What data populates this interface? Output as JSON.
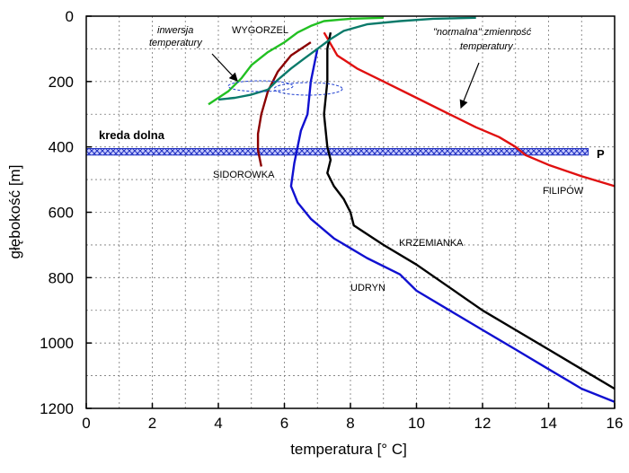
{
  "chart_data": {
    "type": "line",
    "xlabel": "temperatura [° C]",
    "ylabel": "głębokość [m]",
    "xlim": [
      0,
      16
    ],
    "ylim": [
      0,
      1200
    ],
    "y_inverted": true,
    "x_ticks": [
      "0",
      "2",
      "4",
      "6",
      "8",
      "10",
      "12",
      "14",
      "16"
    ],
    "y_ticks": [
      "0",
      "200",
      "400",
      "600",
      "800",
      "1000",
      "1200"
    ],
    "grid": true,
    "series": [
      {
        "name": "FILIPÓW",
        "color": "#e01010",
        "x": [
          7.2,
          7.6,
          8.2,
          9.0,
          10.0,
          11.0,
          11.8,
          12.5,
          13.0,
          13.3,
          14.0,
          15.0,
          16.0
        ],
        "y": [
          50,
          120,
          160,
          200,
          250,
          300,
          340,
          370,
          400,
          425,
          455,
          490,
          520
        ]
      },
      {
        "name": "KRZEMIANKA",
        "color": "#000000",
        "x": [
          7.4,
          7.3,
          7.3,
          7.2,
          7.3,
          7.4,
          7.3,
          7.5,
          7.8,
          8.0,
          8.1,
          8.4,
          9.0,
          10.0,
          11.0,
          12.0,
          13.0,
          14.0,
          15.0,
          16.0
        ],
        "y": [
          50,
          100,
          200,
          300,
          400,
          440,
          480,
          520,
          560,
          600,
          640,
          660,
          700,
          760,
          830,
          900,
          960,
          1020,
          1080,
          1140
        ]
      },
      {
        "name": "UDRYN",
        "color": "#1010d0",
        "x": [
          7.0,
          6.8,
          6.7,
          6.5,
          6.4,
          6.3,
          6.2,
          6.4,
          6.8,
          7.5,
          8.5,
          9.5,
          10.0,
          11.0,
          12.0,
          13.0,
          14.0,
          15.0,
          16.0
        ],
        "y": [
          100,
          200,
          300,
          350,
          400,
          450,
          520,
          570,
          620,
          680,
          740,
          790,
          840,
          900,
          960,
          1020,
          1080,
          1140,
          1180
        ]
      },
      {
        "name": "SIDOROWKA",
        "color": "#8b0000",
        "x": [
          6.8,
          6.2,
          5.8,
          5.5,
          5.3,
          5.2,
          5.2,
          5.3
        ],
        "y": [
          80,
          120,
          170,
          230,
          300,
          360,
          410,
          460
        ]
      },
      {
        "name": "WYGORZEL",
        "color": "#22c022",
        "x": [
          9.0,
          8.0,
          7.2,
          6.8,
          6.4,
          6.0,
          5.5,
          5.0,
          4.7,
          4.3,
          3.7
        ],
        "y": [
          5,
          8,
          15,
          30,
          50,
          80,
          110,
          150,
          190,
          230,
          270
        ]
      },
      {
        "color": "#0a7a6a",
        "x": [
          11.8,
          10.5,
          9.5,
          8.5,
          7.8,
          7.4,
          7.0,
          6.6,
          6.2,
          5.8,
          5.5,
          5.0,
          4.5,
          4.0
        ],
        "y": [
          5,
          8,
          15,
          25,
          45,
          70,
          100,
          130,
          160,
          195,
          225,
          240,
          250,
          255
        ]
      }
    ],
    "annotations": [
      {
        "text": "inwersja",
        "style": "italic"
      },
      {
        "text": "temperatury",
        "style": "italic"
      },
      {
        "text": "WYGORZEL",
        "style": "normal"
      },
      {
        "text": "\"normalna\" zmienność",
        "style": "italic"
      },
      {
        "text": "temperatury",
        "style": "italic"
      },
      {
        "text": "kreda dolna",
        "style": "bold"
      },
      {
        "text": "P",
        "style": "bold"
      },
      {
        "text": "SIDOROWKA",
        "style": "normal"
      },
      {
        "text": "FILIPÓW",
        "style": "normal"
      },
      {
        "text": "KRZEMIANKA",
        "style": "normal"
      },
      {
        "text": "UDRYN",
        "style": "normal"
      }
    ],
    "layer": {
      "name": "kreda dolna",
      "top": 405,
      "bottom": 425
    }
  }
}
